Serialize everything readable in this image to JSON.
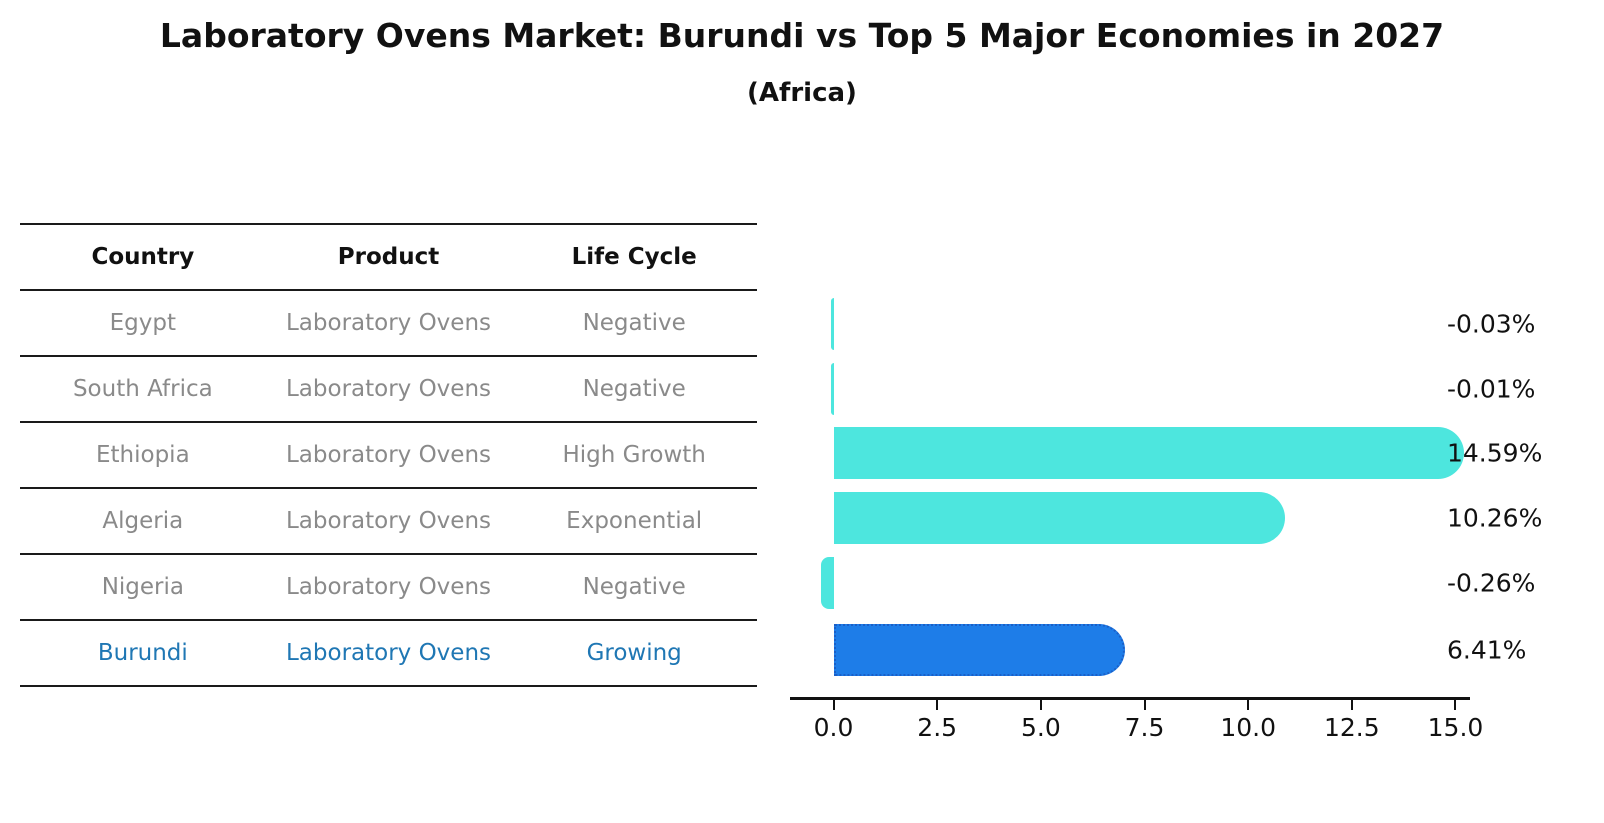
{
  "page": {
    "title": "Laboratory Ovens Market: Burundi vs Top 5 Major Economies in 2027",
    "subtitle": "(Africa)"
  },
  "table": {
    "headers": [
      "Country",
      "Product",
      "Life Cycle"
    ],
    "rows": [
      {
        "country": "Egypt",
        "product": "Laboratory Ovens",
        "life_cycle": "Negative",
        "highlighted": false
      },
      {
        "country": "South Africa",
        "product": "Laboratory Ovens",
        "life_cycle": "Negative",
        "highlighted": false
      },
      {
        "country": "Ethiopia",
        "product": "Laboratory Ovens",
        "life_cycle": "High Growth",
        "highlighted": false
      },
      {
        "country": "Algeria",
        "product": "Laboratory Ovens",
        "life_cycle": "Exponential",
        "highlighted": false
      },
      {
        "country": "Nigeria",
        "product": "Laboratory Ovens",
        "life_cycle": "Negative",
        "highlighted": false
      },
      {
        "country": "Burundi",
        "product": "Laboratory Ovens",
        "life_cycle": "Growing",
        "highlighted": true
      }
    ],
    "text_color": "#8a8a8a",
    "highlight_text_color": "#1f77b4"
  },
  "chart_data": {
    "type": "bar",
    "orientation": "horizontal",
    "title": "Laboratory Ovens Market: Burundi vs Top 5 Major Economies in 2027",
    "subtitle": "(Africa)",
    "categories": [
      "Egypt",
      "South Africa",
      "Ethiopia",
      "Algeria",
      "Nigeria",
      "Burundi"
    ],
    "values": [
      -0.03,
      -0.01,
      14.59,
      10.26,
      -0.26,
      6.41
    ],
    "value_labels": [
      "-0.03%",
      "-0.01%",
      "14.59%",
      "10.26%",
      "-0.26%",
      "6.41%"
    ],
    "highlight_index": 5,
    "bar_color": "#4de6de",
    "highlight_bar_color": "#1e7de8",
    "highlight_border_color": "#1a5fc8",
    "xlabel": "",
    "ylabel": "",
    "xticks": [
      "0.0",
      "2.5",
      "5.0",
      "7.5",
      "10.0",
      "12.5",
      "15.0"
    ],
    "xtick_values": [
      0,
      2.5,
      5,
      7.5,
      10,
      12.5,
      15
    ],
    "xlim": [
      -1.05,
      15.35
    ],
    "grid": false,
    "legend": false
  }
}
